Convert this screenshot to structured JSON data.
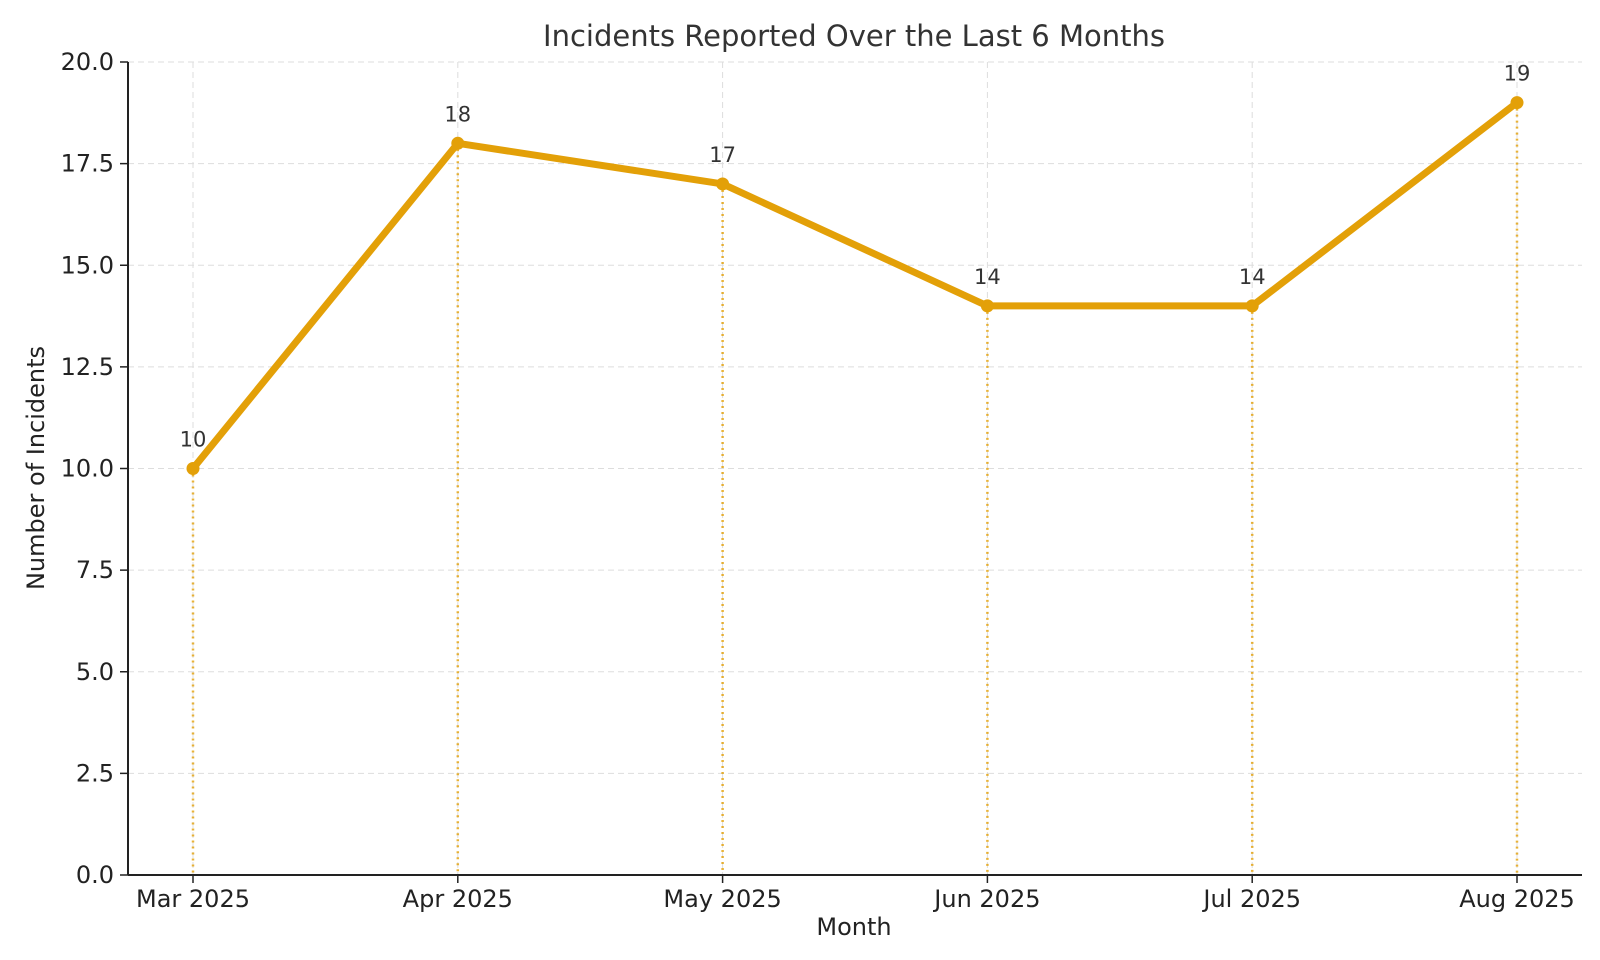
{
  "chart_data": {
    "type": "line",
    "title": "Incidents Reported Over the Last 6 Months",
    "xlabel": "Month",
    "ylabel": "Number of Incidents",
    "categories": [
      "Mar 2025",
      "Apr 2025",
      "May 2025",
      "Jun 2025",
      "Jul 2025",
      "Aug 2025"
    ],
    "series": [
      {
        "values": [
          10,
          18,
          17,
          14,
          14,
          19
        ]
      }
    ],
    "data_labels": [
      "10",
      "18",
      "17",
      "14",
      "14",
      "19"
    ],
    "ylim": [
      0,
      20
    ],
    "y_ticks": [
      0,
      2.5,
      5,
      7.5,
      10,
      12.5,
      15,
      17.5,
      20
    ],
    "y_tick_labels": [
      "0.0",
      "2.5",
      "5.0",
      "7.5",
      "10.0",
      "12.5",
      "15.0",
      "17.5",
      "20.0"
    ],
    "grid": true,
    "drop_lines": true,
    "colors": {
      "line": "#E3A008",
      "drop_line": "#E3A008",
      "grid": "#dddddd",
      "axis": "#222222"
    }
  }
}
